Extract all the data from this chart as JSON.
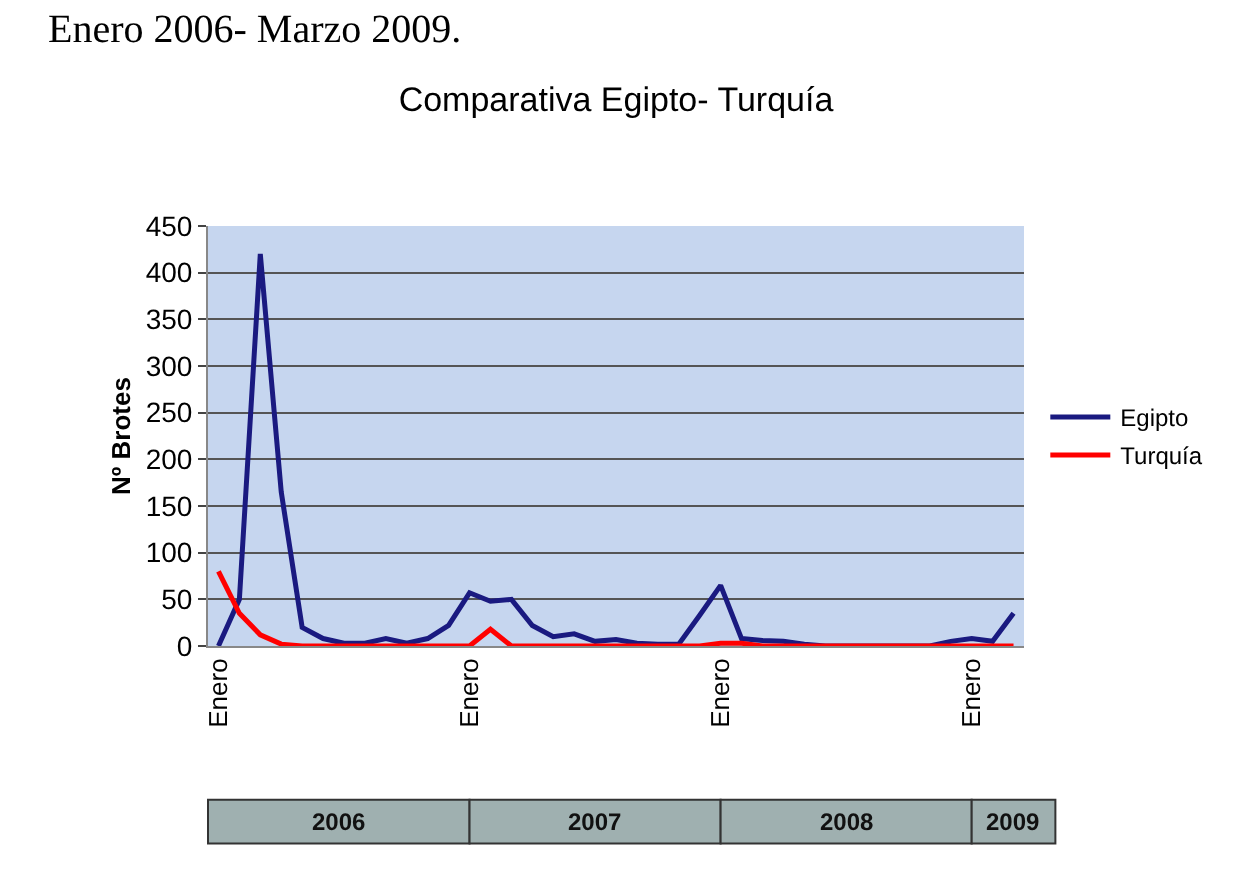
{
  "chart_data": {
    "type": "line",
    "title": "Comparativa Egipto- Turquía",
    "ylabel": "Nº Brotes",
    "categories": [
      "Enero",
      null,
      null,
      null,
      null,
      null,
      null,
      null,
      null,
      null,
      null,
      null,
      "Enero",
      null,
      null,
      null,
      null,
      null,
      null,
      null,
      null,
      null,
      null,
      null,
      "Enero",
      null,
      null,
      null,
      null,
      null,
      null,
      null,
      null,
      null,
      null,
      null,
      "Enero",
      null,
      null
    ],
    "series": [
      {
        "name": "Egipto",
        "color": "#1a1a80",
        "values": [
          0,
          50,
          420,
          165,
          20,
          8,
          3,
          3,
          8,
          3,
          8,
          22,
          57,
          48,
          50,
          22,
          10,
          13,
          5,
          7,
          3,
          2,
          2,
          33,
          65,
          8,
          6,
          5,
          2,
          0,
          0,
          0,
          0,
          0,
          0,
          5,
          8,
          5,
          35
        ]
      },
      {
        "name": "Turquía",
        "color": "#ff0000",
        "values": [
          80,
          35,
          12,
          2,
          0,
          0,
          0,
          0,
          0,
          0,
          0,
          0,
          0,
          18,
          0,
          0,
          0,
          0,
          0,
          0,
          0,
          0,
          0,
          0,
          3,
          3,
          0,
          0,
          0,
          0,
          0,
          0,
          0,
          0,
          0,
          0,
          0,
          0,
          0
        ]
      }
    ],
    "ylim": [
      0,
      450
    ],
    "yticks": [
      0,
      50,
      100,
      150,
      200,
      250,
      300,
      350,
      400,
      450
    ],
    "grid": "y",
    "legend": "right",
    "marker": "none",
    "line_style": "solid",
    "annotations": [
      "Enero 2006- Marzo 2009.",
      "2006",
      "2007",
      "2008",
      "2009"
    ]
  }
}
